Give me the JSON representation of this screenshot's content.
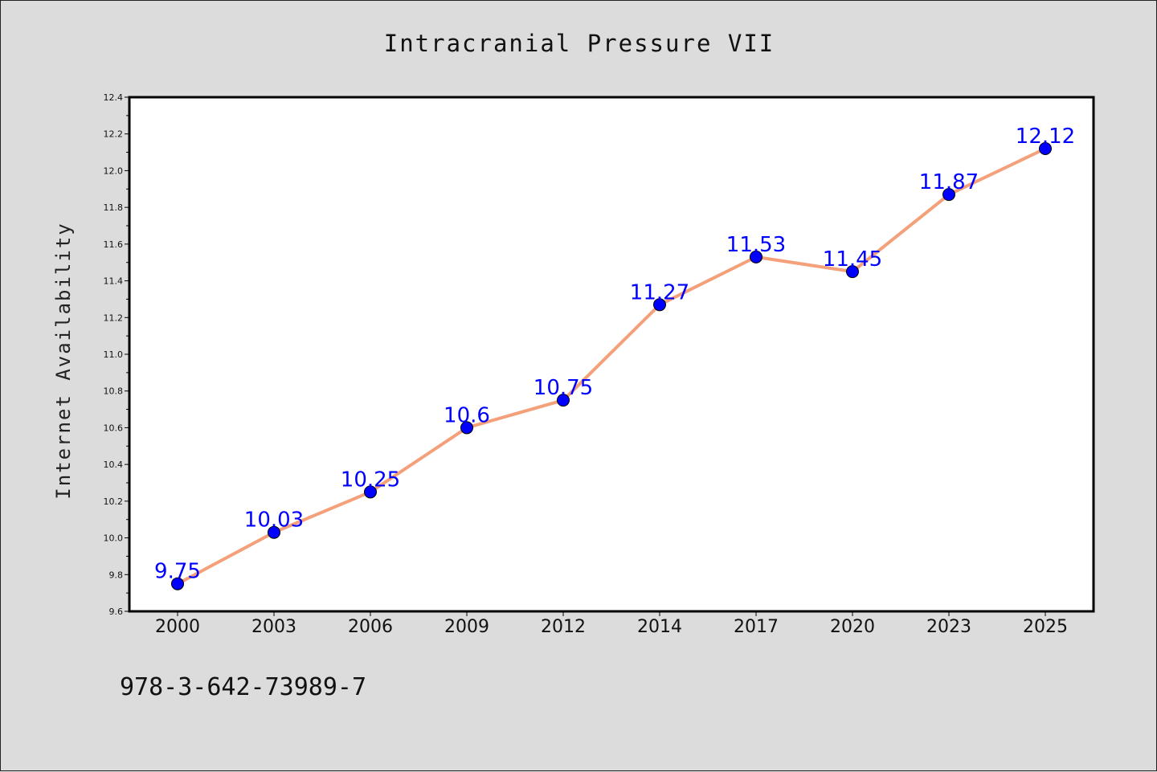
{
  "footer": {
    "isbn": "978-3-642-73989-7"
  },
  "chart_data": {
    "type": "line",
    "title": "Intracranial Pressure VII",
    "xlabel": "",
    "ylabel": "Internet Availability",
    "categories": [
      "2000",
      "2003",
      "2006",
      "2009",
      "2012",
      "2014",
      "2017",
      "2020",
      "2023",
      "2025"
    ],
    "series": [
      {
        "values": [
          9.75,
          10.03,
          10.25,
          10.6,
          10.75,
          11.27,
          11.53,
          11.45,
          11.87,
          12.12
        ],
        "data_labels": [
          "9.75",
          "10.03",
          "10.25",
          "10.6",
          "10.75",
          "11.27",
          "11.53",
          "11.45",
          "11.87",
          "12.12"
        ],
        "line_color": "#f4a07a",
        "marker_color": "#0000ff"
      }
    ],
    "yticks": [
      "9.6",
      "9.8",
      "10.0",
      "10.2",
      "10.4",
      "10.6",
      "10.8",
      "11.0",
      "11.2",
      "11.4",
      "11.6",
      "11.8",
      "12.0",
      "12.2",
      "12.4"
    ],
    "ylim": [
      9.6,
      12.4
    ],
    "grid": false,
    "legend": "none",
    "colors": {
      "background": "#dcdcdc",
      "plot_background": "#ffffff",
      "line": "#f4a07a",
      "marker": "#0000ff",
      "data_label": "#0000ff"
    }
  }
}
